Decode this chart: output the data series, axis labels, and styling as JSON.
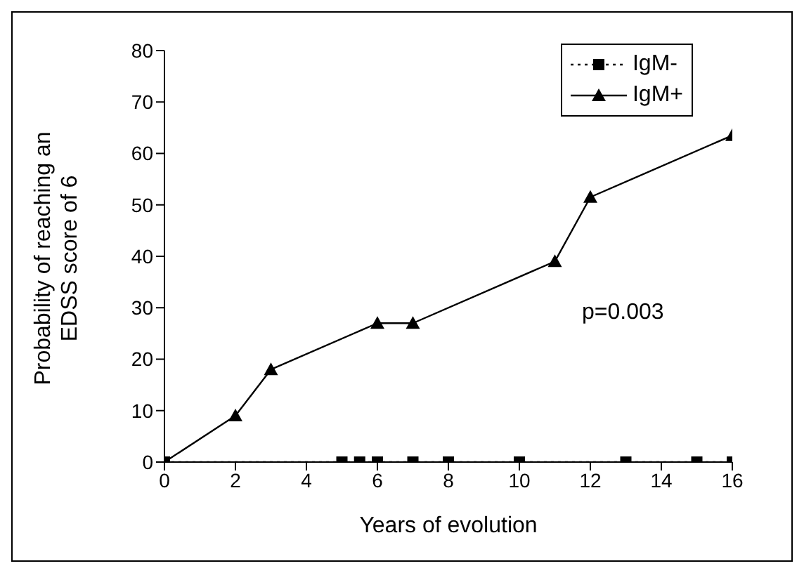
{
  "chart_data": {
    "type": "line",
    "xlabel": "Years of evolution",
    "ylabel": "Probability of reaching an EDSS score of 6",
    "xlim": [
      0,
      16
    ],
    "xticks": [
      0,
      2,
      4,
      6,
      8,
      10,
      12,
      14,
      16
    ],
    "ylim": [
      0,
      80
    ],
    "yticks": [
      0,
      10,
      20,
      30,
      40,
      50,
      60,
      70,
      80
    ],
    "grid": false,
    "legend": "top right",
    "annotations": [
      "p=0.003"
    ],
    "series": [
      {
        "name": "IgM-",
        "color": "#000000",
        "marker": "square",
        "line_style": "dotted",
        "x": [
          0,
          5,
          5.5,
          6,
          7,
          8,
          10,
          13,
          15,
          16
        ],
        "values": [
          0,
          0,
          0,
          0,
          0,
          0,
          0,
          0,
          0,
          0
        ]
      },
      {
        "name": "IgM+",
        "color": "#000000",
        "marker": "triangle",
        "line_style": "solid",
        "x": [
          0,
          2,
          3,
          6,
          7,
          11,
          12,
          16
        ],
        "values": [
          0,
          9,
          18,
          27,
          27,
          39,
          51.5,
          63.5
        ]
      }
    ]
  }
}
